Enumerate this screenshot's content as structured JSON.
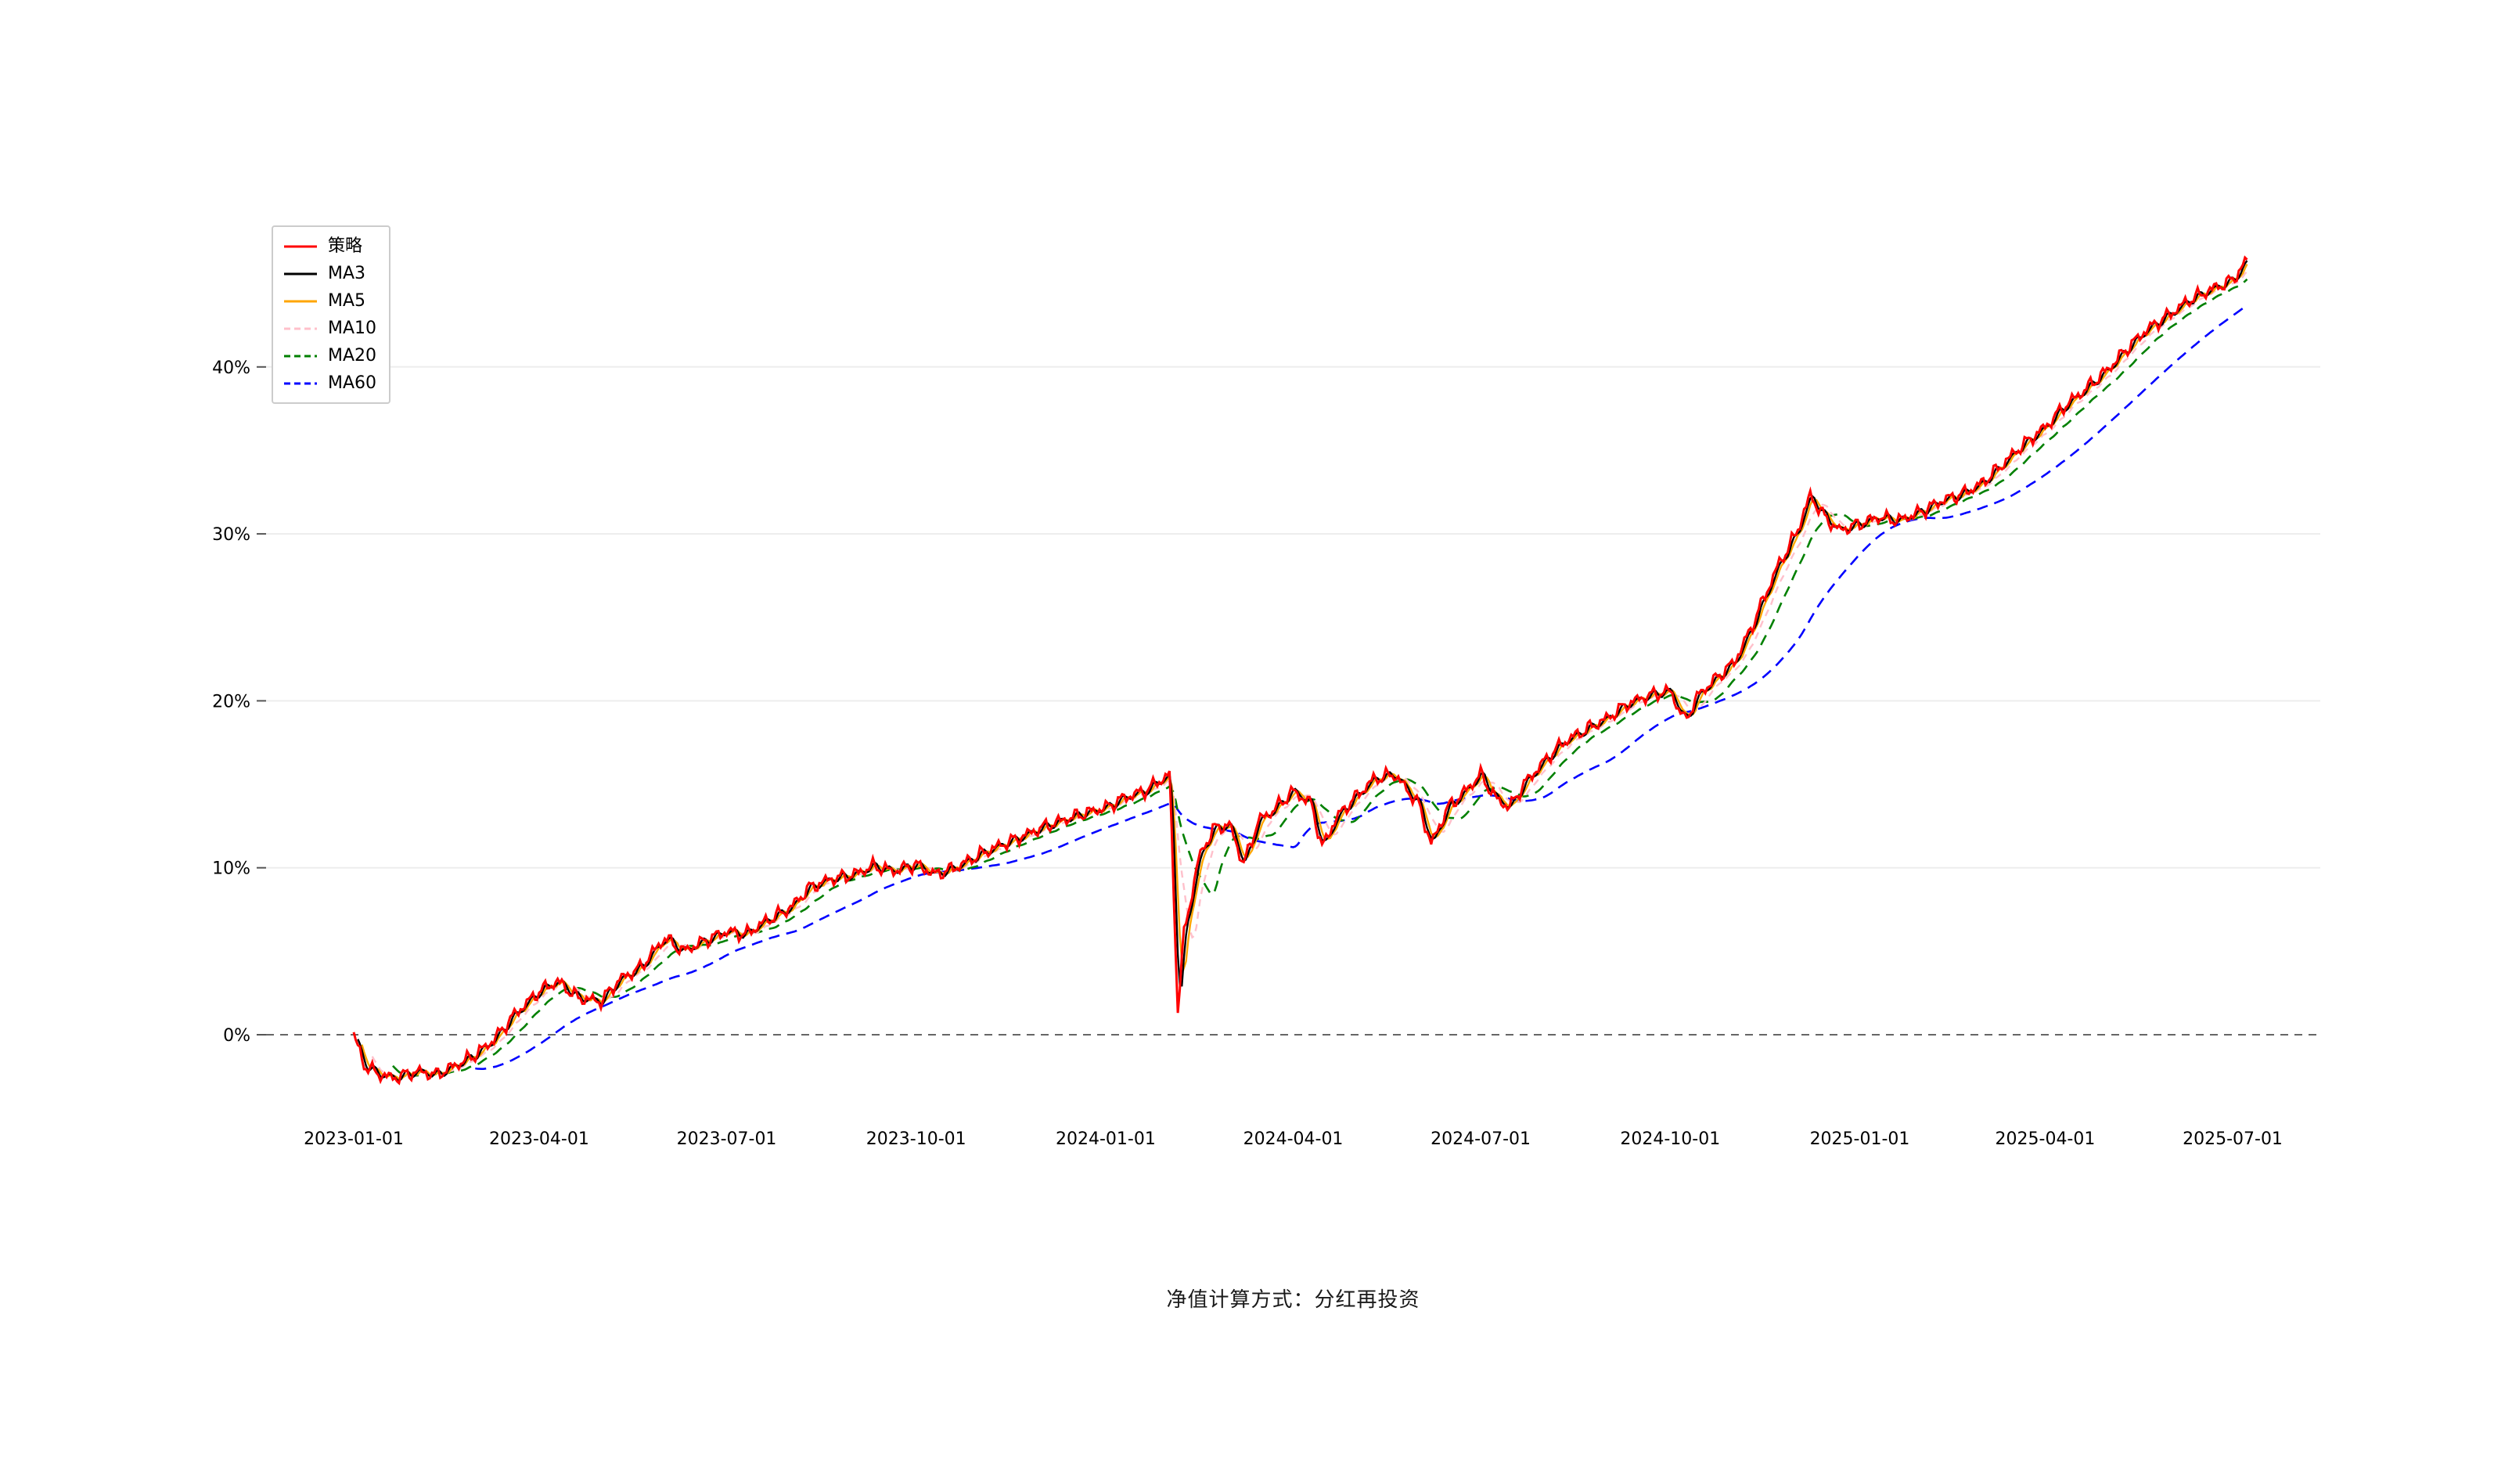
{
  "page": {
    "caption": "净值计算方式：分红再投资"
  },
  "chart_data": {
    "type": "line",
    "title": "",
    "xlabel": "",
    "ylabel": "",
    "ylim": [
      -5,
      48
    ],
    "grid": true,
    "legend_position": "top-left",
    "zero_line_color": "#666666",
    "grid_color": "#ededed",
    "y_ticks": [
      {
        "value": 0,
        "label": "0%"
      },
      {
        "value": 10,
        "label": "10%"
      },
      {
        "value": 20,
        "label": "20%"
      },
      {
        "value": 30,
        "label": "30%"
      },
      {
        "value": 40,
        "label": "40%"
      }
    ],
    "x_ticks": [
      {
        "date": "2023-01-01",
        "label": "2023-01-01"
      },
      {
        "date": "2023-04-01",
        "label": "2023-04-01"
      },
      {
        "date": "2023-07-01",
        "label": "2023-07-01"
      },
      {
        "date": "2023-10-01",
        "label": "2023-10-01"
      },
      {
        "date": "2024-01-01",
        "label": "2024-01-01"
      },
      {
        "date": "2024-04-01",
        "label": "2024-04-01"
      },
      {
        "date": "2024-07-01",
        "label": "2024-07-01"
      },
      {
        "date": "2024-10-01",
        "label": "2024-10-01"
      },
      {
        "date": "2025-01-01",
        "label": "2025-01-01"
      },
      {
        "date": "2025-04-01",
        "label": "2025-04-01"
      },
      {
        "date": "2025-07-01",
        "label": "2025-07-01"
      }
    ],
    "base_series": {
      "name": "策略",
      "color": "#ff0000",
      "dash": "solid",
      "unit": "%",
      "points": [
        [
          "2023-01-01",
          0.0
        ],
        [
          "2023-01-06",
          -1.8
        ],
        [
          "2023-01-12",
          -2.3
        ],
        [
          "2023-01-20",
          -2.6
        ],
        [
          "2023-02-01",
          -2.2
        ],
        [
          "2023-02-10",
          -2.4
        ],
        [
          "2023-02-20",
          -1.8
        ],
        [
          "2023-03-01",
          -1.2
        ],
        [
          "2023-03-10",
          -0.3
        ],
        [
          "2023-03-20",
          1.2
        ],
        [
          "2023-04-01",
          2.6
        ],
        [
          "2023-04-10",
          3.2
        ],
        [
          "2023-04-20",
          2.2
        ],
        [
          "2023-05-01",
          2.0
        ],
        [
          "2023-05-10",
          3.3
        ],
        [
          "2023-05-20",
          4.0
        ],
        [
          "2023-06-01",
          5.8
        ],
        [
          "2023-06-10",
          5.0
        ],
        [
          "2023-06-20",
          5.6
        ],
        [
          "2023-07-01",
          6.2
        ],
        [
          "2023-07-10",
          6.0
        ],
        [
          "2023-07-20",
          6.8
        ],
        [
          "2023-08-01",
          7.6
        ],
        [
          "2023-08-10",
          8.8
        ],
        [
          "2023-08-20",
          9.3
        ],
        [
          "2023-09-01",
          9.6
        ],
        [
          "2023-09-10",
          10.1
        ],
        [
          "2023-09-20",
          9.8
        ],
        [
          "2023-10-01",
          10.2
        ],
        [
          "2023-10-10",
          9.6
        ],
        [
          "2023-10-20",
          10.0
        ],
        [
          "2023-11-01",
          10.8
        ],
        [
          "2023-11-10",
          11.3
        ],
        [
          "2023-11-20",
          11.8
        ],
        [
          "2023-12-01",
          12.4
        ],
        [
          "2023-12-10",
          12.8
        ],
        [
          "2023-12-20",
          13.2
        ],
        [
          "2024-01-01",
          13.6
        ],
        [
          "2024-01-10",
          14.2
        ],
        [
          "2024-01-20",
          14.6
        ],
        [
          "2024-02-01",
          15.6
        ],
        [
          "2024-02-05",
          1.5
        ],
        [
          "2024-02-08",
          6.0
        ],
        [
          "2024-02-15",
          10.5
        ],
        [
          "2024-02-22",
          12.3
        ],
        [
          "2024-03-01",
          12.6
        ],
        [
          "2024-03-08",
          10.2
        ],
        [
          "2024-03-15",
          12.8
        ],
        [
          "2024-03-22",
          13.4
        ],
        [
          "2024-04-01",
          14.6
        ],
        [
          "2024-04-10",
          13.8
        ],
        [
          "2024-04-15",
          11.2
        ],
        [
          "2024-04-22",
          13.0
        ],
        [
          "2024-05-01",
          14.2
        ],
        [
          "2024-05-10",
          15.3
        ],
        [
          "2024-05-20",
          15.6
        ],
        [
          "2024-06-01",
          13.8
        ],
        [
          "2024-06-07",
          11.4
        ],
        [
          "2024-06-15",
          13.6
        ],
        [
          "2024-06-22",
          14.4
        ],
        [
          "2024-07-01",
          15.6
        ],
        [
          "2024-07-08",
          14.2
        ],
        [
          "2024-07-15",
          13.6
        ],
        [
          "2024-07-22",
          15.0
        ],
        [
          "2024-08-01",
          16.4
        ],
        [
          "2024-08-10",
          17.5
        ],
        [
          "2024-08-20",
          18.2
        ],
        [
          "2024-09-01",
          19.0
        ],
        [
          "2024-09-10",
          19.8
        ],
        [
          "2024-09-20",
          20.3
        ],
        [
          "2024-10-01",
          20.6
        ],
        [
          "2024-10-08",
          18.8
        ],
        [
          "2024-10-15",
          20.4
        ],
        [
          "2024-10-22",
          21.2
        ],
        [
          "2024-11-01",
          22.3
        ],
        [
          "2024-11-08",
          24.0
        ],
        [
          "2024-11-15",
          26.0
        ],
        [
          "2024-11-22",
          28.0
        ],
        [
          "2024-12-01",
          30.0
        ],
        [
          "2024-12-08",
          32.3
        ],
        [
          "2024-12-15",
          31.0
        ],
        [
          "2024-12-22",
          30.2
        ],
        [
          "2025-01-01",
          30.6
        ],
        [
          "2025-01-10",
          31.0
        ],
        [
          "2025-01-20",
          30.8
        ],
        [
          "2025-02-01",
          31.4
        ],
        [
          "2025-02-10",
          32.0
        ],
        [
          "2025-02-20",
          32.4
        ],
        [
          "2025-03-01",
          33.0
        ],
        [
          "2025-03-10",
          34.0
        ],
        [
          "2025-03-20",
          35.2
        ],
        [
          "2025-04-01",
          36.4
        ],
        [
          "2025-04-10",
          37.6
        ],
        [
          "2025-04-20",
          38.6
        ],
        [
          "2025-05-01",
          39.8
        ],
        [
          "2025-05-10",
          41.0
        ],
        [
          "2025-05-20",
          42.2
        ],
        [
          "2025-06-01",
          43.2
        ],
        [
          "2025-06-10",
          44.0
        ],
        [
          "2025-06-20",
          44.6
        ],
        [
          "2025-07-01",
          45.2
        ],
        [
          "2025-07-08",
          46.4
        ]
      ]
    },
    "ma_series": [
      {
        "name": "MA3",
        "window": 3,
        "color": "#000000",
        "dash": "solid"
      },
      {
        "name": "MA5",
        "window": 5,
        "color": "#ffa500",
        "dash": "solid"
      },
      {
        "name": "MA10",
        "window": 10,
        "color": "#ffc0cb",
        "dash": "dashed"
      },
      {
        "name": "MA20",
        "window": 20,
        "color": "#008000",
        "dash": "dashed"
      },
      {
        "name": "MA60",
        "window": 60,
        "color": "#0000ff",
        "dash": "dashed"
      }
    ]
  }
}
